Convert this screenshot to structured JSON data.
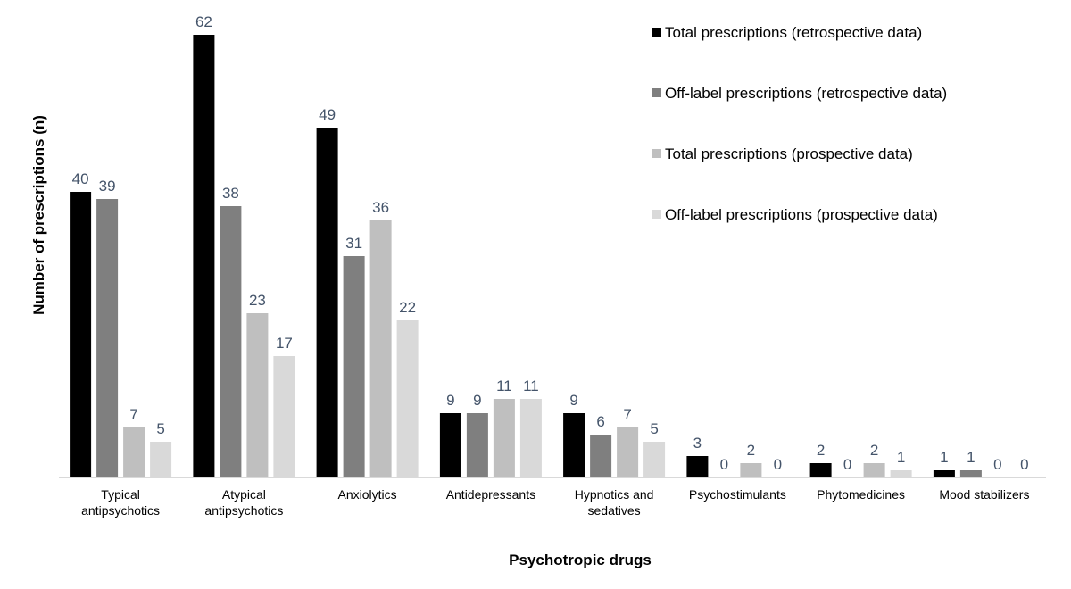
{
  "chart_data": {
    "type": "bar",
    "title": "",
    "xlabel": "Psychotropic drugs",
    "ylabel": "Number of prescriptions (n)",
    "ylim": [
      0,
      62
    ],
    "grid": false,
    "legend_position": "top-right",
    "categories": [
      [
        "Typical",
        "antipsychotics"
      ],
      [
        "Atypical",
        "antipsychotics"
      ],
      [
        "Anxiolytics"
      ],
      [
        "Antidepressants"
      ],
      [
        "Hypnotics and",
        "sedatives"
      ],
      [
        "Psychostimulants"
      ],
      [
        "Phytomedicines"
      ],
      [
        "Mood stabilizers"
      ]
    ],
    "series": [
      {
        "name": "Total prescriptions (retrospective data)",
        "color": "#000000",
        "values": [
          40,
          62,
          49,
          9,
          9,
          3,
          2,
          1
        ]
      },
      {
        "name": "Off-label prescriptions (retrospective data)",
        "color": "#7F7F7F",
        "values": [
          39,
          38,
          31,
          9,
          6,
          0,
          0,
          1
        ]
      },
      {
        "name": "Total prescriptions (prospective data)",
        "color": "#BFBFBF",
        "values": [
          7,
          23,
          36,
          11,
          7,
          2,
          2,
          0
        ]
      },
      {
        "name": "Off-label prescriptions (prospective data)",
        "color": "#D9D9D9",
        "values": [
          5,
          17,
          22,
          11,
          5,
          0,
          1,
          0
        ]
      }
    ]
  }
}
